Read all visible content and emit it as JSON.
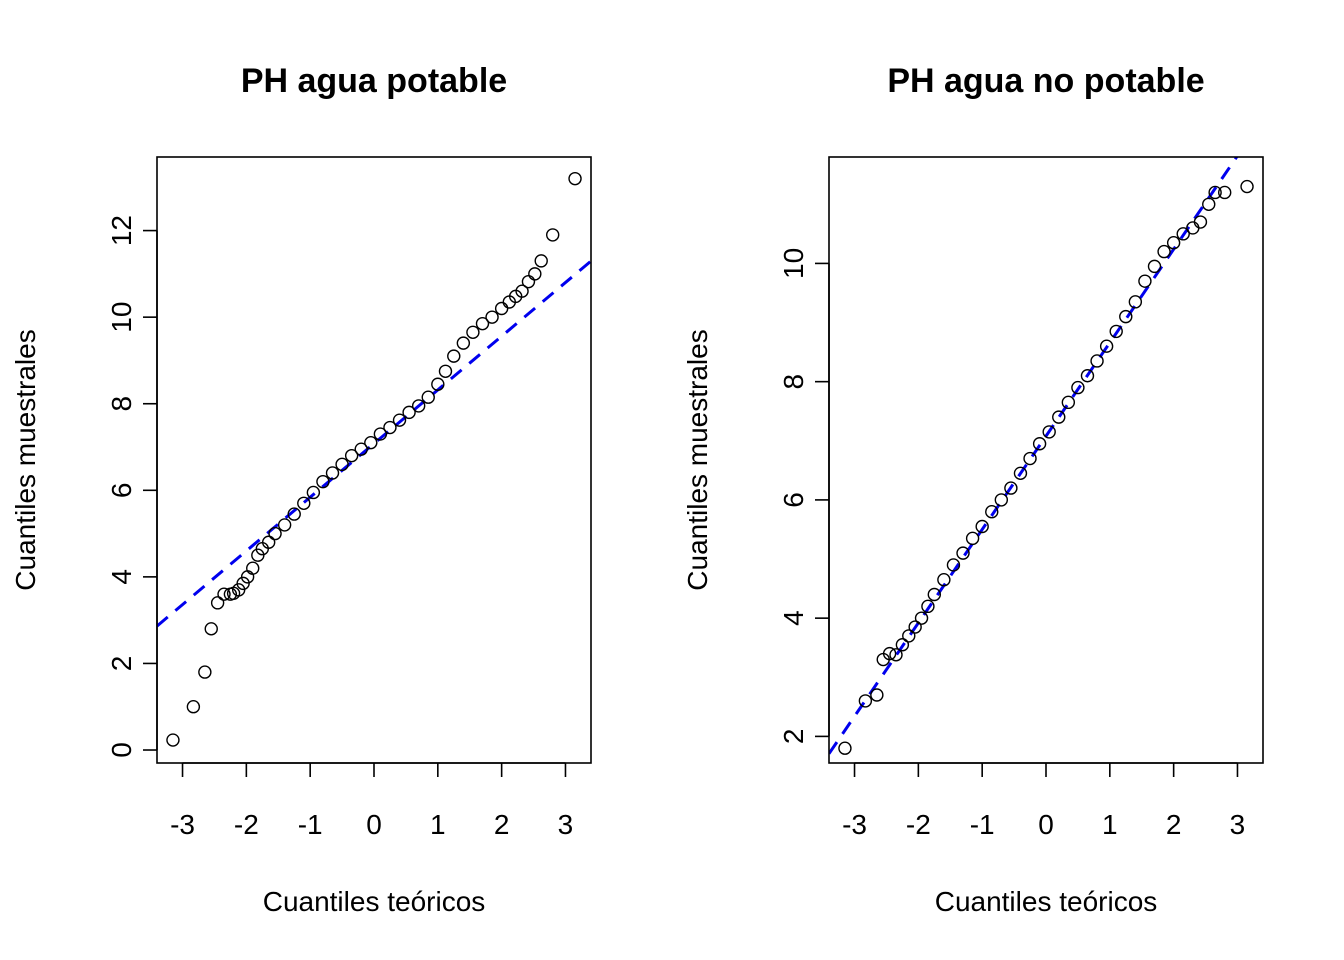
{
  "chart_data": [
    {
      "type": "scatter",
      "subtype": "qq-plot",
      "title": "PH agua potable",
      "xlabel": "Cuantiles teóricos",
      "ylabel": "Cuantiles muestrales",
      "xlim": [
        -3.4,
        3.4
      ],
      "ylim": [
        -0.3,
        13.7
      ],
      "xticks": [
        -3,
        -2,
        -1,
        0,
        1,
        2,
        3
      ],
      "xtick_labels": [
        "-3",
        "-2",
        "-1",
        "0",
        "1",
        "2",
        "3"
      ],
      "yticks": [
        0,
        2,
        4,
        6,
        8,
        10,
        12
      ],
      "ytick_labels": [
        "0",
        "2",
        "4",
        "6",
        "8",
        "10",
        "12"
      ],
      "grid": false,
      "reference_line": {
        "intercept": 7.08,
        "slope": 1.24,
        "color": "#0000ee",
        "style": "dashed"
      },
      "points": [
        [
          -3.15,
          0.23
        ],
        [
          -2.83,
          1.0
        ],
        [
          -2.65,
          1.8
        ],
        [
          -2.55,
          2.8
        ],
        [
          -2.45,
          3.4
        ],
        [
          -2.35,
          3.6
        ],
        [
          -2.25,
          3.6
        ],
        [
          -2.2,
          3.62
        ],
        [
          -2.12,
          3.7
        ],
        [
          -2.05,
          3.85
        ],
        [
          -1.98,
          4.0
        ],
        [
          -1.9,
          4.2
        ],
        [
          -1.82,
          4.5
        ],
        [
          -1.75,
          4.65
        ],
        [
          -1.65,
          4.8
        ],
        [
          -1.55,
          5.0
        ],
        [
          -1.4,
          5.2
        ],
        [
          -1.25,
          5.45
        ],
        [
          -1.1,
          5.7
        ],
        [
          -0.95,
          5.95
        ],
        [
          -0.8,
          6.2
        ],
        [
          -0.65,
          6.4
        ],
        [
          -0.5,
          6.6
        ],
        [
          -0.35,
          6.8
        ],
        [
          -0.2,
          6.95
        ],
        [
          -0.05,
          7.1
        ],
        [
          0.1,
          7.3
        ],
        [
          0.25,
          7.45
        ],
        [
          0.4,
          7.62
        ],
        [
          0.55,
          7.8
        ],
        [
          0.7,
          7.95
        ],
        [
          0.85,
          8.15
        ],
        [
          1.0,
          8.45
        ],
        [
          1.12,
          8.75
        ],
        [
          1.25,
          9.1
        ],
        [
          1.4,
          9.4
        ],
        [
          1.55,
          9.65
        ],
        [
          1.7,
          9.85
        ],
        [
          1.85,
          10.0
        ],
        [
          2.0,
          10.2
        ],
        [
          2.12,
          10.35
        ],
        [
          2.22,
          10.48
        ],
        [
          2.32,
          10.6
        ],
        [
          2.42,
          10.82
        ],
        [
          2.52,
          11.0
        ],
        [
          2.62,
          11.3
        ],
        [
          2.8,
          11.9
        ],
        [
          3.15,
          13.2
        ]
      ]
    },
    {
      "type": "scatter",
      "subtype": "qq-plot",
      "title": "PH agua no potable",
      "xlabel": "Cuantiles teóricos",
      "ylabel": "Cuantiles muestrales",
      "xlim": [
        -3.4,
        3.4
      ],
      "ylim": [
        1.55,
        11.8
      ],
      "xticks": [
        -3,
        -2,
        -1,
        0,
        1,
        2,
        3
      ],
      "xtick_labels": [
        "-3",
        "-2",
        "-1",
        "0",
        "1",
        "2",
        "3"
      ],
      "yticks": [
        2,
        4,
        6,
        8,
        10
      ],
      "ytick_labels": [
        "2",
        "4",
        "6",
        "8",
        "10"
      ],
      "grid": false,
      "reference_line": {
        "intercept": 7.08,
        "slope": 1.58,
        "color": "#0000ee",
        "style": "dashed"
      },
      "points": [
        [
          -3.15,
          1.8
        ],
        [
          -2.83,
          2.6
        ],
        [
          -2.65,
          2.7
        ],
        [
          -2.55,
          3.3
        ],
        [
          -2.45,
          3.4
        ],
        [
          -2.35,
          3.38
        ],
        [
          -2.25,
          3.55
        ],
        [
          -2.15,
          3.7
        ],
        [
          -2.05,
          3.85
        ],
        [
          -1.95,
          4.0
        ],
        [
          -1.85,
          4.2
        ],
        [
          -1.75,
          4.4
        ],
        [
          -1.6,
          4.65
        ],
        [
          -1.45,
          4.9
        ],
        [
          -1.3,
          5.1
        ],
        [
          -1.15,
          5.35
        ],
        [
          -1.0,
          5.55
        ],
        [
          -0.85,
          5.8
        ],
        [
          -0.7,
          6.0
        ],
        [
          -0.55,
          6.2
        ],
        [
          -0.4,
          6.45
        ],
        [
          -0.25,
          6.7
        ],
        [
          -0.1,
          6.95
        ],
        [
          0.05,
          7.15
        ],
        [
          0.2,
          7.4
        ],
        [
          0.35,
          7.65
        ],
        [
          0.5,
          7.9
        ],
        [
          0.65,
          8.1
        ],
        [
          0.8,
          8.35
        ],
        [
          0.95,
          8.6
        ],
        [
          1.1,
          8.85
        ],
        [
          1.25,
          9.1
        ],
        [
          1.4,
          9.35
        ],
        [
          1.55,
          9.7
        ],
        [
          1.7,
          9.95
        ],
        [
          1.85,
          10.2
        ],
        [
          2.0,
          10.35
        ],
        [
          2.15,
          10.5
        ],
        [
          2.3,
          10.6
        ],
        [
          2.42,
          10.7
        ],
        [
          2.55,
          11.0
        ],
        [
          2.65,
          11.2
        ],
        [
          2.8,
          11.2
        ],
        [
          3.15,
          11.3
        ]
      ]
    }
  ]
}
